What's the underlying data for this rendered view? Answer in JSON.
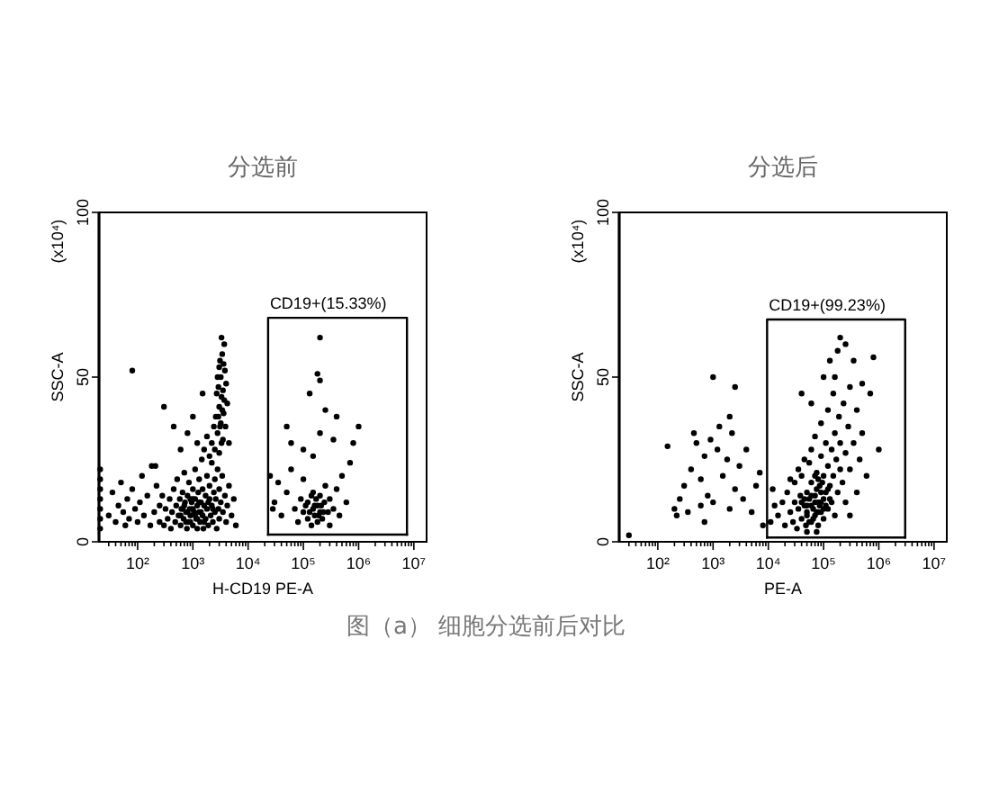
{
  "chart_data": [
    {
      "type": "scatter",
      "title": "分选前",
      "xlabel": "H-CD19 PE-A",
      "ylabel": "SSC-A",
      "annotations": [
        "(x10⁴)",
        "图（a） 细胞分选前后对比"
      ],
      "log": "x",
      "marker": "circle",
      "xlim": [
        20,
        17000000
      ],
      "xticks": [
        {
          "value": 30,
          "label": null
        },
        {
          "value": 40,
          "label": null
        },
        {
          "value": 50,
          "label": null
        },
        {
          "value": 60,
          "label": null
        },
        {
          "value": 70,
          "label": null
        },
        {
          "value": 80,
          "label": null
        },
        {
          "value": 90,
          "label": null
        },
        {
          "value": 100,
          "label": "10²"
        },
        {
          "value": 200,
          "label": null
        },
        {
          "value": 300,
          "label": null
        },
        {
          "value": 400,
          "label": null
        },
        {
          "value": 500,
          "label": null
        },
        {
          "value": 600,
          "label": null
        },
        {
          "value": 700,
          "label": null
        },
        {
          "value": 800,
          "label": null
        },
        {
          "value": 900,
          "label": null
        },
        {
          "value": 1000,
          "label": "10³"
        },
        {
          "value": 2000,
          "label": null
        },
        {
          "value": 3000,
          "label": null
        },
        {
          "value": 4000,
          "label": null
        },
        {
          "value": 5000,
          "label": null
        },
        {
          "value": 6000,
          "label": null
        },
        {
          "value": 7000,
          "label": null
        },
        {
          "value": 8000,
          "label": null
        },
        {
          "value": 9000,
          "label": null
        },
        {
          "value": 10000,
          "label": "10⁴"
        },
        {
          "value": 20000,
          "label": null
        },
        {
          "value": 30000,
          "label": null
        },
        {
          "value": 40000,
          "label": null
        },
        {
          "value": 50000,
          "label": null
        },
        {
          "value": 60000,
          "label": null
        },
        {
          "value": 70000,
          "label": null
        },
        {
          "value": 80000,
          "label": null
        },
        {
          "value": 90000,
          "label": null
        },
        {
          "value": 100000,
          "label": "10⁵"
        },
        {
          "value": 200000,
          "label": null
        },
        {
          "value": 300000,
          "label": null
        },
        {
          "value": 400000,
          "label": null
        },
        {
          "value": 500000,
          "label": null
        },
        {
          "value": 600000,
          "label": null
        },
        {
          "value": 700000,
          "label": null
        },
        {
          "value": 800000,
          "label": null
        },
        {
          "value": 900000,
          "label": null
        },
        {
          "value": 1000000,
          "label": "10⁶"
        },
        {
          "value": 2000000,
          "label": null
        },
        {
          "value": 3000000,
          "label": null
        },
        {
          "value": 4000000,
          "label": null
        },
        {
          "value": 5000000,
          "label": null
        },
        {
          "value": 6000000,
          "label": null
        },
        {
          "value": 7000000,
          "label": null
        },
        {
          "value": 8000000,
          "label": null
        },
        {
          "value": 9000000,
          "label": null
        },
        {
          "value": 10000000,
          "label": "10⁷"
        }
      ],
      "ylim": [
        0,
        100
      ],
      "yticks": [
        0,
        50,
        100
      ],
      "series": [
        {
          "color": "#000000",
          "x": [
            21,
            21,
            21,
            21,
            21,
            21,
            21,
            30,
            35,
            40,
            45,
            50,
            55,
            60,
            65,
            70,
            80,
            90,
            100,
            110,
            120,
            130,
            150,
            170,
            180,
            200,
            220,
            250,
            250,
            280,
            80,
            210,
            450,
            300,
            300,
            320,
            350,
            380,
            400,
            420,
            450,
            480,
            500,
            520,
            550,
            580,
            600,
            620,
            650,
            680,
            700,
            720,
            750,
            780,
            800,
            820,
            850,
            880,
            900,
            950,
            1000,
            1000,
            1050,
            1100,
            1100,
            1150,
            1200,
            1200,
            1250,
            1300,
            1300,
            1350,
            1400,
            1450,
            1500,
            1500,
            1550,
            1600,
            1700,
            1700,
            1800,
            1800,
            1900,
            2000,
            2000,
            2100,
            2200,
            2200,
            2300,
            2400,
            2500,
            2500,
            2600,
            2700,
            2800,
            2900,
            3000,
            3000,
            3200,
            3400,
            3500,
            3800,
            4000,
            4200,
            4500,
            5000,
            5500,
            6000,
            600,
            700,
            800,
            900,
            1000,
            1100,
            1200,
            1300,
            900,
            750,
            650,
            1400,
            1600,
            1900,
            2300,
            1000,
            2000,
            2200,
            2500,
            2800,
            3000,
            3200,
            3500,
            2600,
            3000,
            3300,
            3600,
            2900,
            3200,
            3500,
            3800,
            3100,
            3400,
            3700,
            3300,
            4000,
            4200,
            2400,
            2700,
            3900,
            4500,
            1800,
            1600,
            3000,
            3600,
            2800,
            1200,
            1000,
            800,
            600,
            1500,
            3100,
            3400,
            2900,
            3300,
            3700,
            30000,
            35000,
            40000,
            50000,
            60000,
            70000,
            80000,
            90000,
            100000,
            100000,
            120000,
            120000,
            140000,
            150000,
            150000,
            160000,
            180000,
            180000,
            200000,
            200000,
            220000,
            240000,
            250000,
            280000,
            300000,
            300000,
            350000,
            400000,
            450000,
            500000,
            600000,
            700000,
            60000,
            100000,
            150000,
            200000,
            250000,
            350000,
            800000,
            1000000,
            130000,
            180000,
            200000,
            200000,
            400000,
            50000,
            25000,
            28000,
            130000,
            170000,
            190000,
            160000,
            210000,
            140000,
            110000,
            230000
          ],
          "values": [
            4,
            7,
            10,
            13,
            16,
            19,
            22,
            8,
            15,
            6,
            11,
            18,
            9,
            5,
            13,
            7,
            16,
            10,
            6,
            12,
            20,
            8,
            14,
            5,
            23,
            9,
            17,
            11,
            6,
            14,
            52,
            23,
            35,
            41,
            5,
            10,
            7,
            13,
            4,
            9,
            16,
            6,
            11,
            19,
            8,
            13,
            5,
            10,
            15,
            7,
            21,
            12,
            9,
            4,
            14,
            6,
            18,
            10,
            8,
            12,
            5,
            16,
            9,
            13,
            22,
            7,
            11,
            4,
            15,
            9,
            19,
            6,
            12,
            25,
            8,
            16,
            4,
            11,
            14,
            7,
            20,
            10,
            5,
            13,
            17,
            8,
            24,
            11,
            6,
            15,
            9,
            19,
            13,
            4,
            22,
            10,
            16,
            7,
            12,
            20,
            9,
            14,
            6,
            11,
            17,
            8,
            13,
            5,
            8,
            11,
            9,
            6,
            10,
            8,
            7,
            12,
            13,
            6,
            10,
            9,
            6,
            12,
            10,
            13,
            26,
            30,
            28,
            33,
            27,
            36,
            31,
            38,
            41,
            44,
            39,
            47,
            50,
            46,
            52,
            55,
            57,
            60,
            62,
            48,
            42,
            35,
            45,
            35,
            30,
            32,
            28,
            53,
            54,
            50,
            30,
            38,
            33,
            28,
            45,
            35,
            40,
            38,
            30,
            43,
            12,
            18,
            8,
            15,
            22,
            10,
            6,
            13,
            9,
            19,
            7,
            12,
            5,
            10,
            15,
            8,
            11,
            6,
            9,
            14,
            7,
            12,
            17,
            9,
            5,
            13,
            10,
            16,
            8,
            20,
            12,
            24,
            30,
            28,
            26,
            33,
            40,
            31,
            30,
            35,
            45,
            51,
            49,
            62,
            38,
            35,
            20,
            10,
            9,
            13,
            8,
            11,
            11,
            14,
            11,
            9
          ]
        },
        {
          "type": "line",
          "name": "CD19+(15.33%)",
          "color": "#000000",
          "marker": "none",
          "x": [
            23000,
            23000,
            7500000,
            7500000
          ],
          "values": [
            2.2,
            68,
            68,
            2.2
          ]
        },
        {
          "type": "line",
          "color": "#000000",
          "marker": "none",
          "x": [
            23000,
            7500000
          ],
          "values": [
            2.2,
            2.2
          ]
        }
      ]
    },
    {
      "type": "scatter",
      "title": "分选后",
      "xlabel": "PE-A",
      "ylabel": "SSC-A",
      "annotations": [
        "(x10⁴)"
      ],
      "log": "x",
      "marker": "circle",
      "xlim": [
        20,
        17000000
      ],
      "xticks": [
        {
          "value": 30,
          "label": null
        },
        {
          "value": 40,
          "label": null
        },
        {
          "value": 50,
          "label": null
        },
        {
          "value": 60,
          "label": null
        },
        {
          "value": 70,
          "label": null
        },
        {
          "value": 80,
          "label": null
        },
        {
          "value": 90,
          "label": null
        },
        {
          "value": 100,
          "label": "10²"
        },
        {
          "value": 200,
          "label": null
        },
        {
          "value": 300,
          "label": null
        },
        {
          "value": 400,
          "label": null
        },
        {
          "value": 500,
          "label": null
        },
        {
          "value": 600,
          "label": null
        },
        {
          "value": 700,
          "label": null
        },
        {
          "value": 800,
          "label": null
        },
        {
          "value": 900,
          "label": null
        },
        {
          "value": 1000,
          "label": "10³"
        },
        {
          "value": 2000,
          "label": null
        },
        {
          "value": 3000,
          "label": null
        },
        {
          "value": 4000,
          "label": null
        },
        {
          "value": 5000,
          "label": null
        },
        {
          "value": 6000,
          "label": null
        },
        {
          "value": 7000,
          "label": null
        },
        {
          "value": 8000,
          "label": null
        },
        {
          "value": 9000,
          "label": null
        },
        {
          "value": 10000,
          "label": "10⁴"
        },
        {
          "value": 20000,
          "label": null
        },
        {
          "value": 30000,
          "label": null
        },
        {
          "value": 40000,
          "label": null
        },
        {
          "value": 50000,
          "label": null
        },
        {
          "value": 60000,
          "label": null
        },
        {
          "value": 70000,
          "label": null
        },
        {
          "value": 80000,
          "label": null
        },
        {
          "value": 90000,
          "label": null
        },
        {
          "value": 100000,
          "label": "10⁵"
        },
        {
          "value": 200000,
          "label": null
        },
        {
          "value": 300000,
          "label": null
        },
        {
          "value": 400000,
          "label": null
        },
        {
          "value": 500000,
          "label": null
        },
        {
          "value": 600000,
          "label": null
        },
        {
          "value": 700000,
          "label": null
        },
        {
          "value": 800000,
          "label": null
        },
        {
          "value": 900000,
          "label": null
        },
        {
          "value": 1000000,
          "label": "10⁶"
        },
        {
          "value": 2000000,
          "label": null
        },
        {
          "value": 3000000,
          "label": null
        },
        {
          "value": 4000000,
          "label": null
        },
        {
          "value": 5000000,
          "label": null
        },
        {
          "value": 6000000,
          "label": null
        },
        {
          "value": 7000000,
          "label": null
        },
        {
          "value": 8000000,
          "label": null
        },
        {
          "value": 9000000,
          "label": null
        },
        {
          "value": 10000000,
          "label": "10⁷"
        }
      ],
      "ylim": [
        0,
        100
      ],
      "yticks": [
        0,
        50,
        100
      ],
      "series": [
        {
          "color": "#000000",
          "x": [
            30,
            200,
            220,
            250,
            300,
            400,
            500,
            600,
            700,
            800,
            900,
            1000,
            1200,
            1300,
            1500,
            1800,
            2000,
            2200,
            2500,
            3000,
            3500,
            4000,
            5000,
            1000,
            2500,
            150,
            350,
            600,
            700,
            450,
            2000,
            6000,
            8000,
            7000,
            15000,
            18000,
            20000,
            22000,
            25000,
            28000,
            30000,
            30000,
            33000,
            35000,
            38000,
            40000,
            40000,
            45000,
            48000,
            50000,
            50000,
            55000,
            55000,
            60000,
            60000,
            65000,
            70000,
            70000,
            75000,
            80000,
            80000,
            85000,
            90000,
            90000,
            100000,
            100000,
            100000,
            110000,
            110000,
            120000,
            120000,
            130000,
            140000,
            140000,
            150000,
            160000,
            160000,
            170000,
            180000,
            190000,
            200000,
            200000,
            220000,
            230000,
            250000,
            250000,
            280000,
            300000,
            350000,
            400000,
            450000,
            500000,
            600000,
            700000,
            800000,
            300000,
            150000,
            120000,
            100000,
            130000,
            180000,
            200000,
            250000,
            90000,
            70000,
            60000,
            45000,
            35000,
            25000,
            12000,
            11000,
            13000,
            75000,
            50000,
            40000,
            60000,
            160000,
            350000,
            500000,
            1000000,
            400000,
            300000,
            50000,
            60000,
            70000,
            80000,
            90000,
            65000,
            75000,
            85000,
            95000,
            110000,
            45000,
            55000,
            100000,
            120000,
            130000,
            70000,
            40000,
            60000,
            80000,
            50000,
            90000,
            75000
          ],
          "values": [
            2,
            10,
            8,
            13,
            17,
            22,
            30,
            19,
            26,
            14,
            31,
            12,
            28,
            35,
            20,
            25,
            10,
            33,
            16,
            23,
            13,
            28,
            9,
            50,
            47,
            29,
            9,
            11,
            6,
            33,
            38,
            17,
            5,
            21,
            8,
            12,
            5,
            15,
            9,
            6,
            12,
            18,
            4,
            10,
            14,
            7,
            20,
            11,
            5,
            15,
            9,
            13,
            24,
            6,
            18,
            10,
            14,
            8,
            21,
            5,
            12,
            17,
            9,
            26,
            13,
            7,
            20,
            15,
            30,
            10,
            23,
            17,
            12,
            28,
            20,
            8,
            33,
            25,
            15,
            38,
            22,
            30,
            18,
            42,
            27,
            12,
            35,
            22,
            30,
            40,
            25,
            33,
            20,
            45,
            56,
            47,
            45,
            40,
            50,
            55,
            58,
            62,
            60,
            36,
            32,
            28,
            25,
            22,
            19,
            16,
            6,
            11,
            3,
            3,
            45,
            42,
            50,
            55,
            48,
            28,
            15,
            8,
            8,
            11,
            12,
            9,
            15,
            7,
            16,
            11,
            18,
            11,
            13,
            6,
            10,
            16,
            13,
            20,
            12,
            14,
            19,
            11,
            12,
            9
          ]
        },
        {
          "type": "line",
          "name": "CD19+(99.23%)",
          "color": "#000000",
          "marker": "none",
          "x": [
            9500,
            9500,
            3000000,
            3000000
          ],
          "values": [
            1.3,
            67.5,
            67.5,
            1.3
          ]
        },
        {
          "type": "line",
          "color": "#000000",
          "marker": "none",
          "x": [
            9500,
            3000000
          ],
          "values": [
            1.3,
            1.3
          ]
        }
      ]
    }
  ]
}
